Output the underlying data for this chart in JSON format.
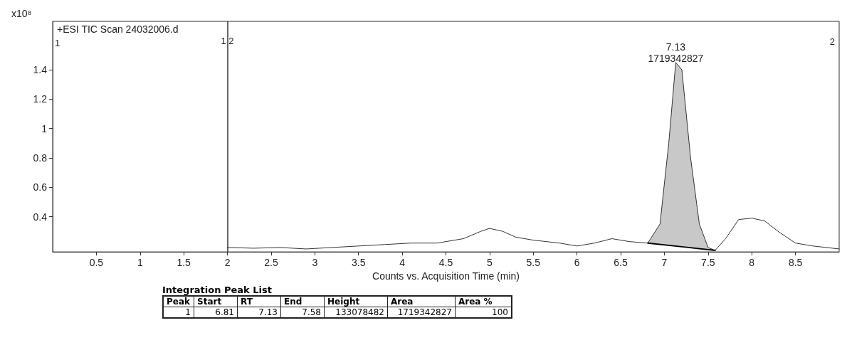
{
  "chart_data": [
    {
      "type": "line",
      "title": "+ESI TIC Scan 24032006.d",
      "xlabel": "Counts vs. Acquisition Time (min)",
      "ylabel": "x10⁸",
      "xlim": [
        0,
        9
      ],
      "xticks": [
        0.5,
        1,
        1.5,
        2,
        2.5,
        3,
        3.5,
        4,
        4.5,
        5,
        5.5,
        6,
        6.5,
        7,
        7.5,
        8,
        8.5
      ],
      "ylim": [
        0.16,
        1.73
      ],
      "yticks": [
        0.4,
        0.6,
        0.8,
        1,
        1.2,
        1.4
      ],
      "grid": false,
      "marker": "none",
      "line_style": "solid",
      "series": [
        {
          "color": "#333333",
          "x": [
            2.0,
            2.3,
            2.6,
            2.9,
            3.2,
            3.5,
            3.8,
            4.1,
            4.4,
            4.7,
            4.9,
            5.0,
            5.15,
            5.3,
            5.5,
            5.8,
            6.0,
            6.2,
            6.4,
            6.6,
            6.81,
            6.95,
            7.05,
            7.13,
            7.2,
            7.3,
            7.4,
            7.5,
            7.58,
            7.7,
            7.85,
            8.0,
            8.15,
            8.3,
            8.5,
            8.7,
            9.0
          ],
          "values": [
            0.19,
            0.185,
            0.19,
            0.18,
            0.19,
            0.2,
            0.21,
            0.22,
            0.22,
            0.25,
            0.3,
            0.32,
            0.3,
            0.26,
            0.24,
            0.22,
            0.2,
            0.22,
            0.25,
            0.23,
            0.22,
            0.35,
            0.9,
            1.45,
            1.4,
            0.8,
            0.35,
            0.19,
            0.17,
            0.25,
            0.38,
            0.39,
            0.37,
            0.3,
            0.22,
            0.2,
            0.18
          ]
        },
        {
          "type": "area",
          "color": "#c8c8c8",
          "x": [
            6.81,
            6.95,
            7.05,
            7.13,
            7.2,
            7.3,
            7.4,
            7.5,
            7.58
          ],
          "values": [
            0.22,
            0.35,
            0.9,
            1.45,
            1.4,
            0.8,
            0.35,
            0.19,
            0.17
          ]
        },
        {
          "type": "line",
          "color": "#000000",
          "x": [
            6.81,
            7.2,
            7.58
          ],
          "values": [
            0.22,
            0.195,
            0.17
          ]
        }
      ],
      "ref_lines": [
        {
          "axis": "x",
          "value": 2,
          "label": "1 2",
          "color": "#333333"
        }
      ],
      "annotations": [
        {
          "text": "7.13\n1719342827",
          "x": 7.13,
          "y": 1.45
        },
        "1",
        "2"
      ]
    },
    {
      "type": "other",
      "title": "Integration Peak List",
      "categories": [
        "Peak",
        "Start",
        "RT",
        "End",
        "Height",
        "Area",
        "Area %"
      ],
      "values": [
        1,
        6.81,
        7.13,
        7.58,
        133078482,
        1719342827,
        100
      ],
      "data_labels": true
    }
  ]
}
